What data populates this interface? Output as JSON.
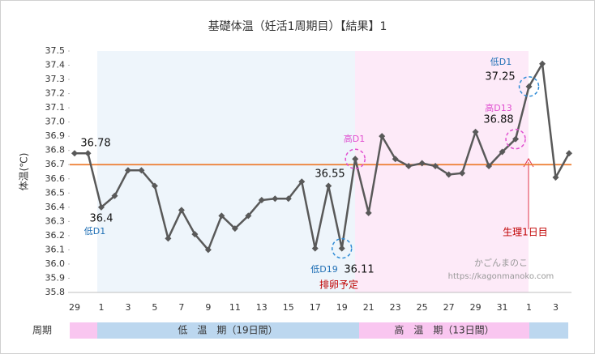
{
  "chart_data": {
    "type": "line",
    "title": "基礎体温（妊活1周期目）【結果】1",
    "y_label": "体温(℃)",
    "categories": [
      "29",
      null,
      "1",
      null,
      "3",
      null,
      "5",
      null,
      "7",
      null,
      "9",
      null,
      "11",
      null,
      "13",
      null,
      "15",
      null,
      "17",
      null,
      "19",
      null,
      "21",
      null,
      "23",
      null,
      "25",
      null,
      "27",
      null,
      "29",
      null,
      "31",
      null,
      "1",
      null,
      "3",
      null
    ],
    "series": [
      {
        "name": "体温",
        "color": "#595959",
        "values": [
          36.78,
          36.78,
          36.4,
          36.48,
          36.66,
          36.66,
          36.55,
          36.18,
          36.38,
          36.21,
          36.1,
          36.34,
          36.25,
          36.34,
          36.45,
          36.46,
          36.46,
          36.58,
          36.11,
          36.55,
          36.11,
          36.74,
          36.36,
          36.9,
          36.74,
          36.69,
          36.71,
          36.69,
          36.63,
          36.64,
          36.93,
          36.69,
          36.79,
          36.88,
          37.25,
          37.41,
          36.61,
          36.78
        ],
        "value_labels": [
          null,
          "36.78",
          "36.4",
          null,
          null,
          null,
          null,
          null,
          null,
          null,
          null,
          null,
          null,
          null,
          null,
          null,
          null,
          null,
          null,
          "36.55",
          "36.11",
          null,
          null,
          null,
          null,
          null,
          null,
          null,
          null,
          null,
          null,
          null,
          null,
          "36.88",
          "37.25",
          null,
          null,
          null
        ]
      }
    ],
    "reference_line": {
      "value": 36.7,
      "color": "#ed7d31"
    },
    "ylim": [
      35.8,
      37.5
    ],
    "yticks": [
      35.8,
      35.9,
      {
        "value": 36.0,
        "label": "36.0"
      },
      36.1,
      36.2,
      36.3,
      36.4,
      36.5,
      36.6,
      36.7,
      36.8,
      36.9,
      {
        "value": 37.0,
        "label": "37.0"
      },
      37.1,
      37.2,
      37.3,
      37.4,
      37.5
    ],
    "annotations": [
      "低D1",
      "低D19",
      "高D1",
      "高D13",
      "低D1",
      "生理1日目",
      "排卵予定",
      "かごんまのこ",
      "https://kagonmanoko.com"
    ],
    "period_label": "周期",
    "periods": [
      "低　温　期（19日間）",
      "高　温　期（13日間）"
    ]
  }
}
